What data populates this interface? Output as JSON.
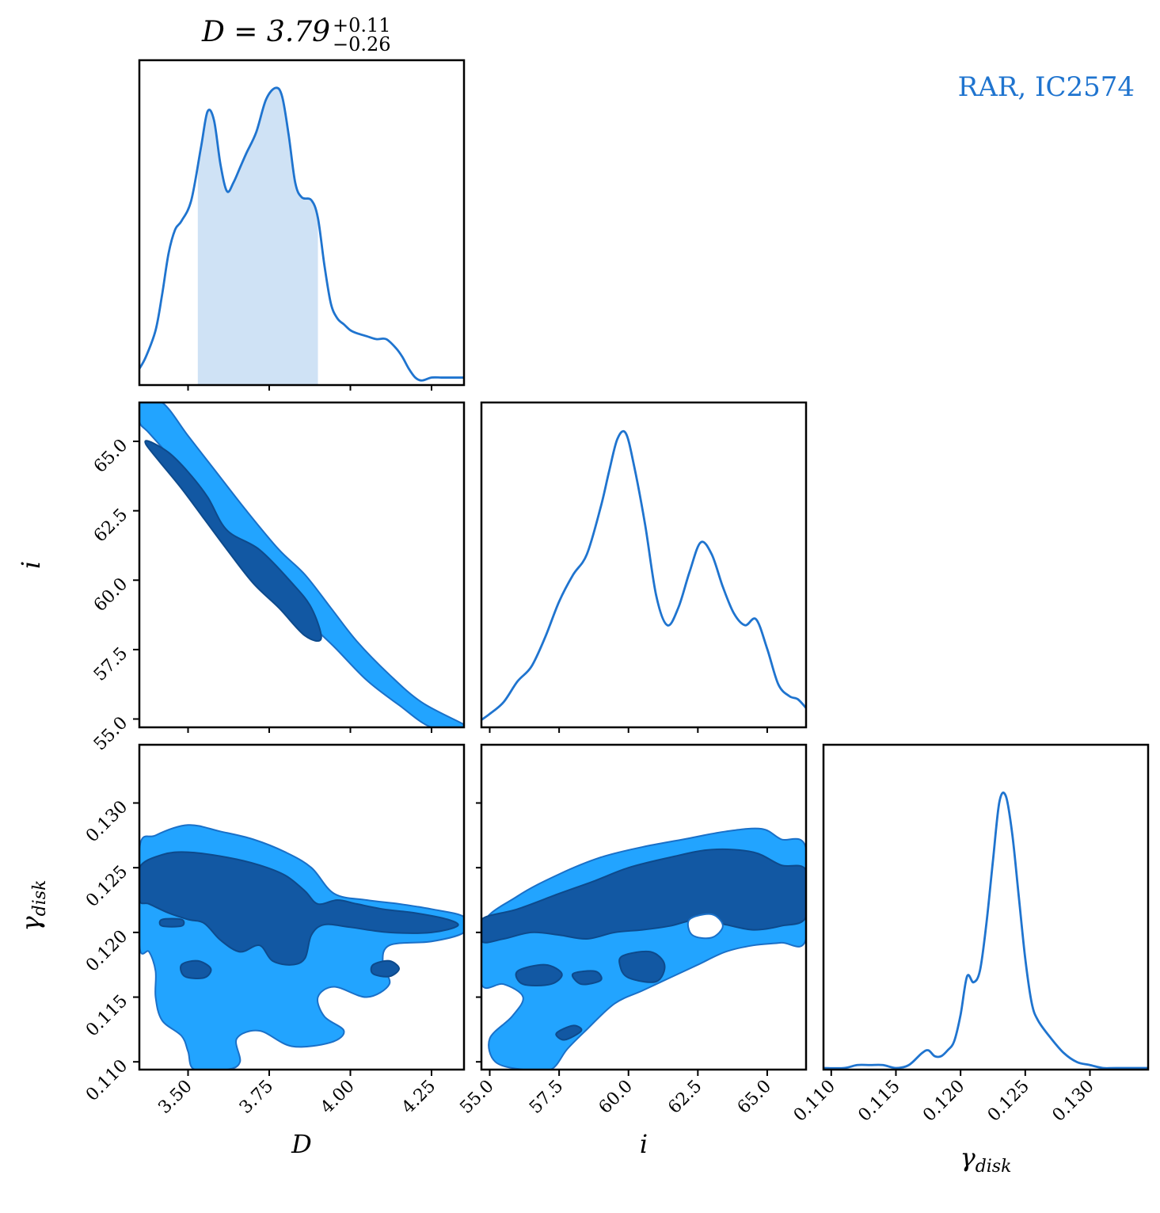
{
  "legend_text": "RAR, IC2574",
  "colors": {
    "line": "#1f74cf",
    "fill_light": "#cfe2f5",
    "contour_outer": "#22a4ff",
    "contour_inner": "#1258a3",
    "contour_edge": "#1a70c8",
    "legend": "#1f74cf"
  },
  "chart_data": {
    "type": "corner",
    "parameters": [
      {
        "key": "D",
        "label": "D",
        "range": [
          3.35,
          4.35
        ],
        "ticks": [
          "3.50",
          "3.75",
          "4.00",
          "4.25"
        ]
      },
      {
        "key": "i",
        "label": "i",
        "range": [
          54.7,
          66.4
        ],
        "ticks": [
          "55.0",
          "57.5",
          "60.0",
          "62.5",
          "65.0"
        ]
      },
      {
        "key": "gamma_disk",
        "label": "γdisk",
        "label_base": "γ",
        "label_sub": "disk",
        "range": [
          0.1094,
          0.1345
        ],
        "ticks": [
          "0.110",
          "0.115",
          "0.120",
          "0.125",
          "0.130"
        ]
      }
    ],
    "title_D": {
      "lhs": "D = 3.79",
      "plus": "+0.11",
      "minus": "−0.26"
    },
    "marginals": {
      "D": {
        "x": [
          3.35,
          3.37,
          3.4,
          3.42,
          3.44,
          3.46,
          3.48,
          3.51,
          3.54,
          3.56,
          3.58,
          3.6,
          3.62,
          3.64,
          3.66,
          3.68,
          3.71,
          3.74,
          3.77,
          3.79,
          3.81,
          3.83,
          3.85,
          3.88,
          3.9,
          3.92,
          3.94,
          3.96,
          3.98,
          4.0,
          4.02,
          4.05,
          4.08,
          4.11,
          4.14,
          4.16,
          4.18,
          4.2,
          4.22,
          4.25,
          4.28,
          4.31,
          4.35
        ],
        "y": [
          0.05,
          0.09,
          0.18,
          0.3,
          0.44,
          0.52,
          0.55,
          0.62,
          0.8,
          0.92,
          0.89,
          0.74,
          0.65,
          0.68,
          0.73,
          0.78,
          0.85,
          0.96,
          1.0,
          0.97,
          0.84,
          0.68,
          0.63,
          0.62,
          0.56,
          0.4,
          0.27,
          0.22,
          0.2,
          0.18,
          0.17,
          0.16,
          0.15,
          0.15,
          0.12,
          0.09,
          0.05,
          0.02,
          0.01,
          0.02,
          0.02,
          0.02,
          0.02
        ],
        "shade": [
          3.53,
          3.9
        ]
      },
      "i": {
        "x": [
          54.7,
          55.0,
          55.5,
          56.0,
          56.5,
          57.0,
          57.5,
          58.0,
          58.5,
          59.0,
          59.3,
          59.6,
          59.9,
          60.2,
          60.6,
          61.0,
          61.4,
          61.8,
          62.2,
          62.6,
          63.0,
          63.4,
          63.8,
          64.2,
          64.6,
          65.0,
          65.4,
          65.8,
          66.1,
          66.4
        ],
        "y": [
          0.02,
          0.04,
          0.08,
          0.15,
          0.2,
          0.3,
          0.42,
          0.51,
          0.58,
          0.74,
          0.86,
          0.97,
          0.99,
          0.88,
          0.68,
          0.44,
          0.34,
          0.4,
          0.52,
          0.62,
          0.58,
          0.47,
          0.38,
          0.34,
          0.36,
          0.26,
          0.14,
          0.1,
          0.09,
          0.06
        ]
      },
      "gamma_disk": {
        "x": [
          0.1094,
          0.111,
          0.112,
          0.113,
          0.114,
          0.115,
          0.116,
          0.117,
          0.1175,
          0.118,
          0.1185,
          0.119,
          0.1195,
          0.12,
          0.1205,
          0.121,
          0.1215,
          0.122,
          0.1225,
          0.123,
          0.1235,
          0.124,
          0.1245,
          0.125,
          0.1255,
          0.126,
          0.127,
          0.128,
          0.129,
          0.13,
          0.131,
          0.132,
          0.1345
        ],
        "y": [
          0.0,
          0.0,
          0.01,
          0.01,
          0.01,
          0.0,
          0.01,
          0.05,
          0.06,
          0.04,
          0.04,
          0.06,
          0.09,
          0.18,
          0.31,
          0.29,
          0.33,
          0.49,
          0.7,
          0.9,
          0.92,
          0.79,
          0.58,
          0.37,
          0.22,
          0.16,
          0.1,
          0.05,
          0.02,
          0.01,
          0.0,
          0.0,
          0.0
        ]
      }
    },
    "contours": {
      "i_vs_D": {
        "outer": [
          [
            [
              3.35,
              66.4
            ],
            [
              3.42,
              66.4
            ],
            [
              3.5,
              65.2
            ],
            [
              3.58,
              64.0
            ],
            [
              3.68,
              62.5
            ],
            [
              3.78,
              61.1
            ],
            [
              3.86,
              60.2
            ],
            [
              3.94,
              59.0
            ],
            [
              4.02,
              57.8
            ],
            [
              4.12,
              56.6
            ],
            [
              4.22,
              55.6
            ],
            [
              4.35,
              54.8
            ],
            [
              4.35,
              54.7
            ],
            [
              4.25,
              54.7
            ],
            [
              4.15,
              55.5
            ],
            [
              4.05,
              56.4
            ],
            [
              3.95,
              57.6
            ],
            [
              3.86,
              58.6
            ],
            [
              3.77,
              59.7
            ],
            [
              3.68,
              60.9
            ],
            [
              3.6,
              62.0
            ],
            [
              3.52,
              63.3
            ],
            [
              3.44,
              64.5
            ],
            [
              3.38,
              65.3
            ],
            [
              3.35,
              65.7
            ]
          ]
        ],
        "inner": [
          [
            [
              3.38,
              65.0
            ],
            [
              3.44,
              64.6
            ],
            [
              3.5,
              63.9
            ],
            [
              3.56,
              63.0
            ],
            [
              3.62,
              61.8
            ],
            [
              3.72,
              61.1
            ],
            [
              3.82,
              59.9
            ],
            [
              3.88,
              59.0
            ],
            [
              3.91,
              57.9
            ],
            [
              3.86,
              58.0
            ],
            [
              3.78,
              59.0
            ],
            [
              3.7,
              59.9
            ],
            [
              3.62,
              61.1
            ],
            [
              3.55,
              62.2
            ],
            [
              3.48,
              63.3
            ],
            [
              3.41,
              64.3
            ],
            [
              3.37,
              64.9
            ]
          ]
        ]
      },
      "gamma_vs_D": {
        "outer": [
          [
            [
              3.35,
              0.1265
            ],
            [
              3.4,
              0.1275
            ],
            [
              3.5,
              0.1283
            ],
            [
              3.6,
              0.1278
            ],
            [
              3.7,
              0.1272
            ],
            [
              3.8,
              0.1262
            ],
            [
              3.88,
              0.125
            ],
            [
              3.95,
              0.123
            ],
            [
              4.05,
              0.1225
            ],
            [
              4.15,
              0.1222
            ],
            [
              4.25,
              0.1218
            ],
            [
              4.35,
              0.1212
            ],
            [
              4.35,
              0.12
            ],
            [
              4.25,
              0.1193
            ],
            [
              4.12,
              0.119
            ],
            [
              4.1,
              0.1175
            ],
            [
              4.12,
              0.116
            ],
            [
              4.05,
              0.115
            ],
            [
              3.95,
              0.1158
            ],
            [
              3.9,
              0.115
            ],
            [
              3.92,
              0.1135
            ],
            [
              3.98,
              0.1124
            ],
            [
              3.94,
              0.1115
            ],
            [
              3.82,
              0.1112
            ],
            [
              3.72,
              0.1124
            ],
            [
              3.65,
              0.1118
            ],
            [
              3.66,
              0.11
            ],
            [
              3.62,
              0.1094
            ],
            [
              3.52,
              0.1094
            ],
            [
              3.5,
              0.1108
            ],
            [
              3.48,
              0.112
            ],
            [
              3.42,
              0.1132
            ],
            [
              3.4,
              0.115
            ],
            [
              3.4,
              0.117
            ],
            [
              3.38,
              0.1185
            ],
            [
              3.35,
              0.119
            ]
          ]
        ],
        "inner": [
          [
            [
              3.35,
              0.125
            ],
            [
              3.42,
              0.126
            ],
            [
              3.5,
              0.1262
            ],
            [
              3.62,
              0.1258
            ],
            [
              3.72,
              0.1252
            ],
            [
              3.8,
              0.1244
            ],
            [
              3.86,
              0.1232
            ],
            [
              3.9,
              0.1222
            ],
            [
              3.96,
              0.1225
            ],
            [
              4.02,
              0.1222
            ],
            [
              4.1,
              0.1218
            ],
            [
              4.2,
              0.1215
            ],
            [
              4.3,
              0.121
            ],
            [
              4.33,
              0.1205
            ],
            [
              4.25,
              0.12
            ],
            [
              4.12,
              0.12
            ],
            [
              4.0,
              0.1204
            ],
            [
              3.92,
              0.1206
            ],
            [
              3.88,
              0.1198
            ],
            [
              3.86,
              0.118
            ],
            [
              3.82,
              0.1175
            ],
            [
              3.76,
              0.1178
            ],
            [
              3.72,
              0.119
            ],
            [
              3.66,
              0.1185
            ],
            [
              3.6,
              0.1194
            ],
            [
              3.55,
              0.1207
            ],
            [
              3.5,
              0.121
            ],
            [
              3.44,
              0.1215
            ],
            [
              3.38,
              0.1222
            ],
            [
              3.35,
              0.1225
            ]
          ],
          [
            [
              3.48,
              0.1175
            ],
            [
              3.53,
              0.1178
            ],
            [
              3.57,
              0.1172
            ],
            [
              3.55,
              0.1165
            ],
            [
              3.49,
              0.1166
            ]
          ],
          [
            [
              4.07,
              0.1175
            ],
            [
              4.12,
              0.1178
            ],
            [
              4.15,
              0.1172
            ],
            [
              4.12,
              0.1166
            ],
            [
              4.07,
              0.1168
            ]
          ],
          [
            [
              3.42,
              0.121
            ],
            [
              3.48,
              0.121
            ],
            [
              3.48,
              0.1205
            ],
            [
              3.42,
              0.1205
            ]
          ]
        ]
      },
      "gamma_vs_i": {
        "outer": [
          [
            [
              54.7,
              0.1205
            ],
            [
              56.0,
              0.1228
            ],
            [
              57.5,
              0.1245
            ],
            [
              59.0,
              0.1258
            ],
            [
              60.5,
              0.1266
            ],
            [
              62.0,
              0.1272
            ],
            [
              63.5,
              0.1278
            ],
            [
              64.8,
              0.128
            ],
            [
              65.5,
              0.1272
            ],
            [
              66.4,
              0.1265
            ],
            [
              66.4,
              0.1195
            ],
            [
              65.5,
              0.1192
            ],
            [
              64.5,
              0.119
            ],
            [
              63.5,
              0.1185
            ],
            [
              62.5,
              0.1175
            ],
            [
              61.5,
              0.1165
            ],
            [
              60.5,
              0.1155
            ],
            [
              59.5,
              0.1145
            ],
            [
              58.5,
              0.1125
            ],
            [
              57.8,
              0.111
            ],
            [
              57.2,
              0.1094
            ],
            [
              56.2,
              0.1094
            ],
            [
              55.2,
              0.11
            ],
            [
              55.0,
              0.1118
            ],
            [
              55.8,
              0.1135
            ],
            [
              56.2,
              0.115
            ],
            [
              55.5,
              0.116
            ],
            [
              54.7,
              0.116
            ]
          ]
        ],
        "inner": [
          [
            [
              54.7,
              0.121
            ],
            [
              56.0,
              0.1218
            ],
            [
              57.5,
              0.123
            ],
            [
              58.8,
              0.124
            ],
            [
              60.0,
              0.125
            ],
            [
              61.5,
              0.1258
            ],
            [
              63.0,
              0.1264
            ],
            [
              64.5,
              0.1262
            ],
            [
              65.5,
              0.1252
            ],
            [
              66.4,
              0.1248
            ],
            [
              66.4,
              0.1212
            ],
            [
              65.5,
              0.1205
            ],
            [
              64.5,
              0.1202
            ],
            [
              63.5,
              0.1206
            ],
            [
              62.5,
              0.121
            ],
            [
              61.5,
              0.1205
            ],
            [
              60.5,
              0.1202
            ],
            [
              59.5,
              0.12
            ],
            [
              58.5,
              0.1195
            ],
            [
              57.5,
              0.1198
            ],
            [
              56.5,
              0.12
            ],
            [
              55.5,
              0.1195
            ],
            [
              54.7,
              0.1193
            ]
          ],
          [
            [
              59.8,
              0.1182
            ],
            [
              60.8,
              0.1185
            ],
            [
              61.3,
              0.1175
            ],
            [
              61.0,
              0.1162
            ],
            [
              60.0,
              0.1165
            ],
            [
              59.7,
              0.1174
            ]
          ],
          [
            [
              56.0,
              0.117
            ],
            [
              57.0,
              0.1175
            ],
            [
              57.6,
              0.1168
            ],
            [
              57.2,
              0.116
            ],
            [
              56.2,
              0.116
            ]
          ],
          [
            [
              58.0,
              0.1168
            ],
            [
              58.8,
              0.117
            ],
            [
              59.0,
              0.1163
            ],
            [
              58.3,
              0.116
            ]
          ],
          [
            [
              57.4,
              0.1122
            ],
            [
              58.0,
              0.1128
            ],
            [
              58.3,
              0.1124
            ],
            [
              57.7,
              0.1117
            ]
          ]
        ],
        "holes": [
          [
            [
              62.2,
              0.121
            ],
            [
              63.0,
              0.1214
            ],
            [
              63.4,
              0.1205
            ],
            [
              63.0,
              0.1196
            ],
            [
              62.3,
              0.1198
            ]
          ]
        ]
      }
    }
  }
}
